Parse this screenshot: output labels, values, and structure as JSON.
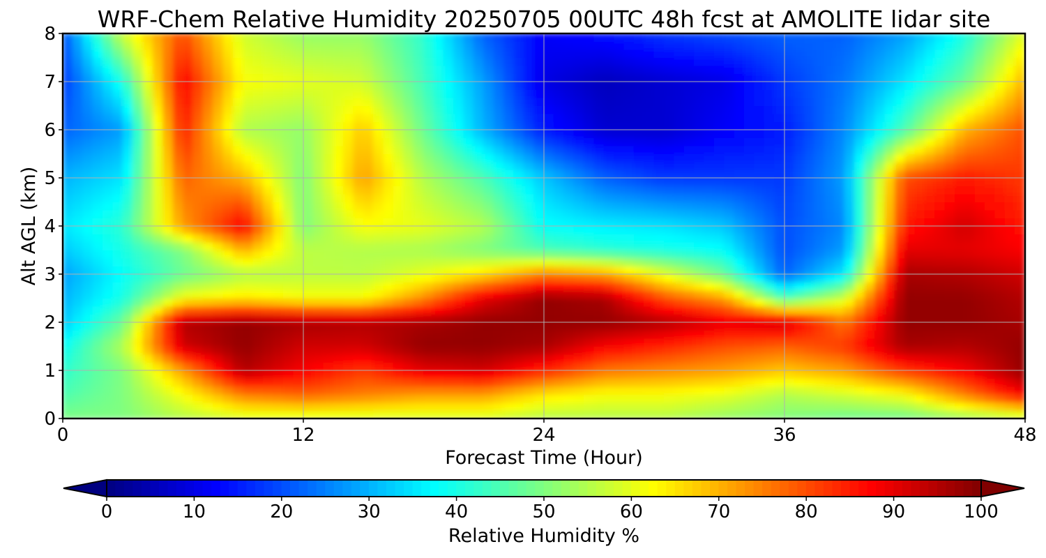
{
  "chart_data": {
    "type": "heatmap",
    "title": "WRF-Chem Relative Humidity 20250705 00UTC 48h fcst at AMOLITE lidar site",
    "xlabel": "Forecast Time (Hour)",
    "ylabel": "Alt AGL (km)",
    "xlim": [
      0,
      48
    ],
    "ylim": [
      0,
      8
    ],
    "x_ticks": [
      0,
      12,
      24,
      36,
      48
    ],
    "y_ticks": [
      0,
      1,
      2,
      3,
      4,
      5,
      6,
      7,
      8
    ],
    "grid": true,
    "colormap": "jet",
    "colorbar": {
      "label": "Relative Humidity %",
      "range": [
        0,
        100
      ],
      "ticks": [
        0,
        10,
        20,
        30,
        40,
        50,
        60,
        70,
        80,
        90,
        100
      ],
      "extend": "both",
      "placement": "bottom"
    },
    "x": [
      0,
      3,
      6,
      9,
      12,
      15,
      18,
      21,
      24,
      27,
      30,
      33,
      36,
      39,
      42,
      45,
      48
    ],
    "y": [
      0,
      0.5,
      1,
      1.5,
      2,
      2.5,
      3,
      3.5,
      4,
      5,
      6,
      7,
      8
    ],
    "z": [
      [
        50,
        50,
        55,
        58,
        58,
        58,
        58,
        58,
        55,
        55,
        55,
        52,
        50,
        48,
        48,
        52,
        55
      ],
      [
        45,
        50,
        62,
        75,
        78,
        75,
        72,
        72,
        65,
        62,
        62,
        60,
        55,
        58,
        62,
        75,
        88
      ],
      [
        42,
        50,
        72,
        95,
        88,
        82,
        90,
        92,
        84,
        76,
        74,
        72,
        68,
        72,
        82,
        88,
        98
      ],
      [
        38,
        55,
        92,
        98,
        92,
        92,
        98,
        98,
        96,
        88,
        84,
        80,
        78,
        82,
        96,
        95,
        98
      ],
      [
        32,
        48,
        95,
        98,
        96,
        95,
        96,
        98,
        98,
        98,
        95,
        90,
        92,
        76,
        98,
        98,
        96
      ],
      [
        30,
        40,
        62,
        65,
        62,
        62,
        74,
        90,
        98,
        96,
        80,
        72,
        45,
        58,
        98,
        98,
        95
      ],
      [
        28,
        38,
        48,
        55,
        56,
        56,
        60,
        66,
        75,
        72,
        60,
        48,
        22,
        36,
        96,
        95,
        92
      ],
      [
        32,
        40,
        50,
        70,
        56,
        55,
        54,
        50,
        45,
        42,
        40,
        38,
        20,
        28,
        90,
        90,
        88
      ],
      [
        35,
        42,
        72,
        88,
        50,
        62,
        60,
        55,
        38,
        36,
        35,
        32,
        20,
        26,
        85,
        92,
        85
      ],
      [
        30,
        35,
        78,
        70,
        50,
        72,
        55,
        45,
        32,
        22,
        18,
        18,
        18,
        28,
        80,
        85,
        82
      ],
      [
        22,
        28,
        85,
        55,
        52,
        68,
        48,
        30,
        15,
        8,
        8,
        12,
        15,
        26,
        45,
        70,
        80
      ],
      [
        18,
        40,
        88,
        62,
        60,
        58,
        44,
        28,
        10,
        6,
        8,
        10,
        18,
        24,
        35,
        48,
        70
      ],
      [
        20,
        58,
        80,
        58,
        52,
        52,
        42,
        22,
        12,
        14,
        18,
        20,
        22,
        22,
        28,
        40,
        60
      ]
    ]
  }
}
